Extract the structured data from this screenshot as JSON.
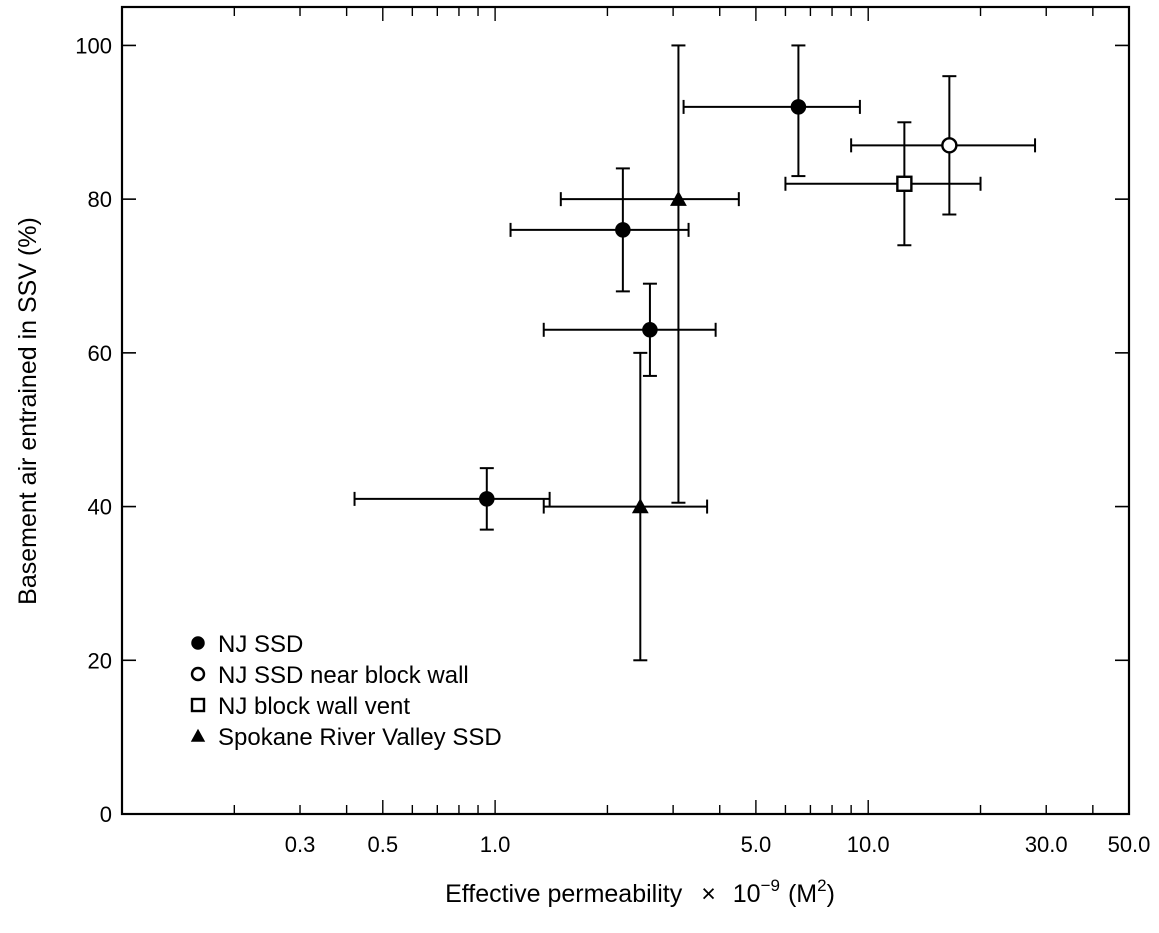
{
  "chart_data": {
    "type": "scatter",
    "x_scale": "log",
    "grid": false,
    "legend_position": "bottom-left",
    "xlim": [
      0.1,
      50
    ],
    "ylim": [
      0,
      105
    ],
    "xlabel_main": "Effective permeability",
    "xlabel_times": "×",
    "xlabel_base": "10",
    "xlabel_exp": "−9",
    "xlabel_unit_open": "(M",
    "xlabel_unit_sup": "2",
    "xlabel_unit_close": ")",
    "ylabel": "Basement air entrained in SSV (%)",
    "x_ticks": [
      {
        "value": 0.3,
        "label": "0.3"
      },
      {
        "value": 0.5,
        "label": "0.5"
      },
      {
        "value": 1.0,
        "label": "1.0"
      },
      {
        "value": 5.0,
        "label": "5.0"
      },
      {
        "value": 10.0,
        "label": "10.0"
      },
      {
        "value": 30.0,
        "label": "30.0"
      },
      {
        "value": 50.0,
        "label": "50.0"
      }
    ],
    "y_ticks": [
      {
        "value": 0,
        "label": "0"
      },
      {
        "value": 20,
        "label": "20"
      },
      {
        "value": 40,
        "label": "40"
      },
      {
        "value": 60,
        "label": "60"
      },
      {
        "value": 80,
        "label": "80"
      },
      {
        "value": 100,
        "label": "100"
      }
    ],
    "series": [
      {
        "name": "NJ SSD",
        "marker": "filled-circle",
        "points": [
          {
            "x": 0.95,
            "y": 41,
            "x_low": 0.42,
            "x_high": 1.4,
            "y_low": 37,
            "y_high": 45
          },
          {
            "x": 2.2,
            "y": 76,
            "x_low": 1.1,
            "x_high": 3.3,
            "y_low": 68,
            "y_high": 84
          },
          {
            "x": 2.6,
            "y": 63,
            "x_low": 1.35,
            "x_high": 3.9,
            "y_low": 57,
            "y_high": 69
          },
          {
            "x": 6.5,
            "y": 92,
            "x_low": 3.2,
            "x_high": 9.5,
            "y_low": 83,
            "y_high": 100
          }
        ]
      },
      {
        "name": "NJ SSD near block wall",
        "marker": "open-circle",
        "points": [
          {
            "x": 16.5,
            "y": 87,
            "x_low": 9.0,
            "x_high": 28,
            "y_low": 78,
            "y_high": 96
          }
        ]
      },
      {
        "name": "NJ block wall vent",
        "marker": "open-square",
        "points": [
          {
            "x": 12.5,
            "y": 82,
            "x_low": 6.0,
            "x_high": 20,
            "y_low": 74,
            "y_high": 90
          }
        ]
      },
      {
        "name": "Spokane River Valley SSD",
        "marker": "filled-triangle",
        "points": [
          {
            "x": 2.45,
            "y": 40,
            "x_low": 1.35,
            "x_high": 3.7,
            "y_low": 20,
            "y_high": 60
          },
          {
            "x": 3.1,
            "y": 80,
            "x_low": 1.5,
            "x_high": 4.5,
            "y_low": 40.5,
            "y_high": 100
          }
        ]
      }
    ]
  }
}
